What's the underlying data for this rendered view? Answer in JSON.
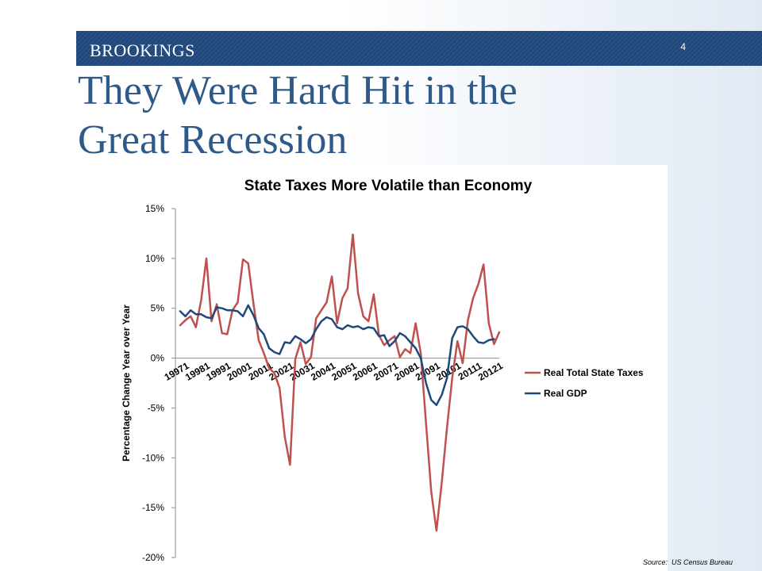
{
  "slide": {
    "brand": "BROOKINGS",
    "page_number": "4",
    "title_line1": "They Were Hard Hit in the",
    "title_line2": "Great Recession",
    "source": "Source:  US Census Bureau"
  },
  "chart_data": {
    "type": "line",
    "title": "State Taxes More Volatile than Economy",
    "xlabel": "",
    "ylabel": "Percentage Change Year over Year",
    "ylim": [
      -20,
      15
    ],
    "yticks": [
      15,
      10,
      5,
      0,
      -5,
      -10,
      -15,
      -20
    ],
    "ytick_labels": [
      "15%",
      "10%",
      "5%",
      "0%",
      "-5%",
      "-10%",
      "-15%",
      "-20%"
    ],
    "grid": false,
    "legend": "right",
    "x_tick_labels": [
      "19971",
      "19981",
      "19991",
      "20001",
      "20011",
      "20021",
      "20031",
      "20041",
      "20051",
      "20061",
      "20071",
      "20081",
      "20091",
      "20101",
      "20111",
      "20121"
    ],
    "series": [
      {
        "name": "Real Total State Taxes",
        "color": "#c0504d",
        "values": [
          3.3,
          3.8,
          4.2,
          3.1,
          5.8,
          10.0,
          3.7,
          5.4,
          2.5,
          2.4,
          4.8,
          5.6,
          9.9,
          9.5,
          5.5,
          1.8,
          0.5,
          -1.0,
          -1.5,
          -3.0,
          -7.9,
          -10.7,
          -0.1,
          1.6,
          -0.6,
          0.1,
          4.0,
          4.8,
          5.6,
          8.2,
          3.5,
          6.0,
          7.0,
          12.4,
          6.5,
          4.2,
          3.7,
          6.4,
          2.3,
          1.3,
          1.8,
          2.2,
          0.1,
          0.9,
          0.5,
          3.5,
          0.5,
          -6.5,
          -13.4,
          -17.3,
          -12.5,
          -7.0,
          -2.0,
          1.7,
          -0.5,
          3.8,
          6.0,
          7.4,
          9.4,
          3.5,
          1.4,
          2.6
        ]
      },
      {
        "name": "Real GDP",
        "color": "#1f497d",
        "values": [
          4.7,
          4.2,
          4.8,
          4.4,
          4.4,
          4.1,
          4.0,
          5.1,
          5.0,
          4.8,
          4.8,
          4.7,
          4.2,
          5.3,
          4.3,
          3.0,
          2.4,
          1.0,
          0.6,
          0.4,
          1.6,
          1.5,
          2.2,
          1.9,
          1.5,
          1.9,
          2.9,
          3.7,
          4.1,
          3.9,
          3.1,
          2.9,
          3.3,
          3.1,
          3.2,
          2.9,
          3.1,
          3.0,
          2.2,
          2.3,
          1.2,
          1.7,
          2.5,
          2.2,
          1.6,
          1.0,
          0.0,
          -2.5,
          -4.2,
          -4.7,
          -3.7,
          -2.0,
          2.0,
          3.1,
          3.2,
          2.9,
          2.2,
          1.6,
          1.5,
          1.8,
          1.9
        ]
      }
    ]
  }
}
